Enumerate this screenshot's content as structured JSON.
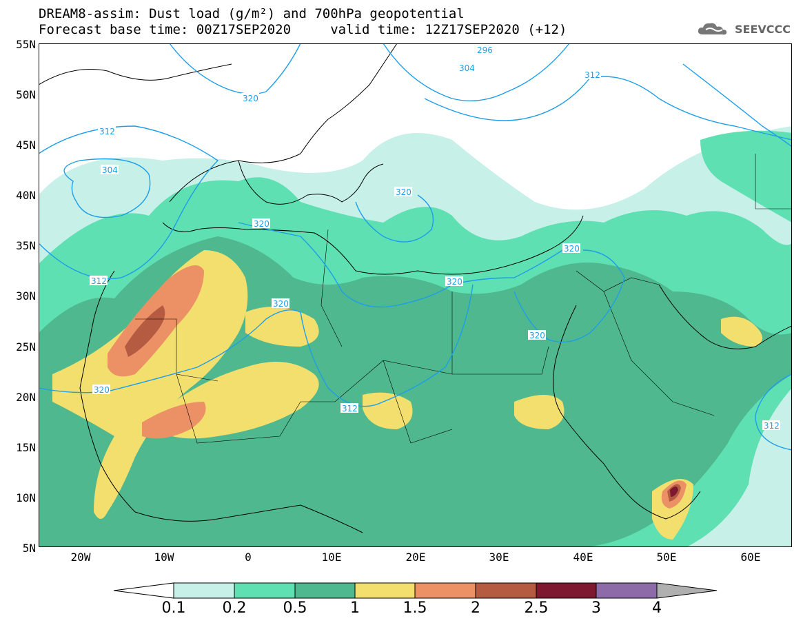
{
  "title": {
    "line1": "DREAM8-assim: Dust load (g/m²) and 700hPa geopotential",
    "line2": "Forecast base time: 00Z17SEP2020     valid time: 12Z17SEP2020 (+12)"
  },
  "logo": {
    "text": "SEEVCCC",
    "icon": "cloud-icon"
  },
  "lat_labels": [
    "55N",
    "50N",
    "45N",
    "40N",
    "35N",
    "30N",
    "25N",
    "20N",
    "15N",
    "10N",
    "5N"
  ],
  "lon_labels": [
    "20W",
    "10W",
    "0",
    "10E",
    "20E",
    "30E",
    "40E",
    "50E",
    "60E"
  ],
  "contour_labels": [
    "296",
    "304",
    "312",
    "320",
    "304",
    "312",
    "320",
    "312",
    "312",
    "320",
    "320",
    "320",
    "320",
    "320",
    "320",
    "312"
  ],
  "colorbar": {
    "ticks": [
      "0.1",
      "0.2",
      "0.5",
      "1",
      "1.5",
      "2",
      "2.5",
      "3",
      "4"
    ],
    "colors": [
      "#ffffff",
      "#c6f0e8",
      "#5ee0b2",
      "#4fb88e",
      "#f2df6e",
      "#ec9166",
      "#b55b42",
      "#7e1830",
      "#8c6ba8",
      "#b0b0b0"
    ]
  },
  "map_colors": {
    "geopotential_lines": "#1e9ee8",
    "coastlines": "#000000"
  }
}
